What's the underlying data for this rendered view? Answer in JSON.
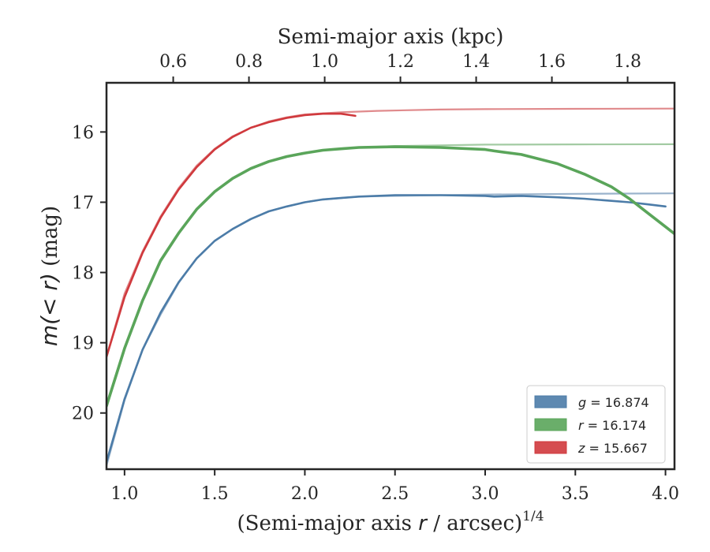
{
  "chart_data": {
    "type": "line",
    "xlabel": "(Semi-major axis r / arcsec)",
    "xlabel_prefix": "(Semi-major axis ",
    "xlabel_var": "r",
    "xlabel_suffix": " / arcsec)",
    "xlabel_exponent": "1/4",
    "ylabel": "m(< r) (mag)",
    "ylabel_math": "m(< r)",
    "ylabel_unit": " (mag)",
    "top_xlabel": "Semi-major axis (kpc)",
    "xlim": [
      0.9,
      4.05
    ],
    "ylim": [
      20.8,
      15.3
    ],
    "y_inverted": true,
    "x_ticks": [
      "1.0",
      "1.5",
      "2.0",
      "2.5",
      "3.0",
      "3.5",
      "4.0"
    ],
    "x_tick_values": [
      1.0,
      1.5,
      2.0,
      2.5,
      3.0,
      3.5,
      4.0
    ],
    "y_ticks": [
      "16",
      "17",
      "18",
      "19",
      "20"
    ],
    "y_tick_values": [
      16,
      17,
      18,
      19,
      20
    ],
    "top_x_ticks": [
      "0.6",
      "0.8",
      "1.0",
      "1.2",
      "1.4",
      "1.6",
      "1.8"
    ],
    "top_x_tick_positions": [
      1.27,
      1.69,
      2.11,
      2.53,
      2.95,
      3.37,
      3.79
    ],
    "legend": {
      "location": "lower right",
      "entries": [
        {
          "band": "g",
          "text": " = 16.874",
          "color": "#4c7ca8"
        },
        {
          "band": "r",
          "text": " = 16.174",
          "color": "#5aa55a"
        },
        {
          "band": "z",
          "text": " = 15.667",
          "color": "#d0393d"
        }
      ]
    },
    "series": [
      {
        "name": "g model",
        "color": "#9ab3cc",
        "x": [
          0.9,
          1.0,
          1.1,
          1.2,
          1.3,
          1.4,
          1.5,
          1.6,
          1.7,
          1.8,
          1.9,
          2.0,
          2.1,
          2.2,
          2.3,
          2.5,
          2.75,
          3.0,
          3.5,
          4.05
        ],
        "y": [
          20.75,
          19.82,
          19.1,
          18.6,
          18.15,
          17.8,
          17.55,
          17.38,
          17.24,
          17.13,
          17.06,
          17.0,
          16.96,
          16.94,
          16.92,
          16.91,
          16.9,
          16.89,
          16.88,
          16.874
        ]
      },
      {
        "name": "g data",
        "color": "#4c7ca8",
        "x": [
          0.9,
          1.0,
          1.1,
          1.2,
          1.3,
          1.4,
          1.5,
          1.6,
          1.7,
          1.8,
          1.9,
          2.0,
          2.1,
          2.2,
          2.3,
          2.5,
          2.75,
          3.0,
          3.05,
          3.2,
          3.4,
          3.55,
          3.7,
          3.8,
          3.9,
          4.0
        ],
        "y": [
          20.7,
          19.8,
          19.1,
          18.57,
          18.14,
          17.8,
          17.55,
          17.38,
          17.24,
          17.13,
          17.06,
          17.0,
          16.96,
          16.94,
          16.92,
          16.9,
          16.9,
          16.91,
          16.92,
          16.91,
          16.93,
          16.95,
          16.98,
          17.0,
          17.03,
          17.06
        ]
      },
      {
        "name": "r model",
        "color": "#a3cba3",
        "x": [
          0.9,
          1.0,
          1.1,
          1.2,
          1.3,
          1.4,
          1.5,
          1.6,
          1.7,
          1.8,
          1.9,
          2.0,
          2.1,
          2.2,
          2.3,
          2.5,
          2.75,
          3.0,
          3.5,
          4.05
        ],
        "y": [
          19.9,
          19.08,
          18.4,
          17.85,
          17.45,
          17.1,
          16.85,
          16.66,
          16.52,
          16.42,
          16.35,
          16.3,
          16.26,
          16.24,
          16.22,
          16.2,
          16.19,
          16.18,
          16.177,
          16.174
        ]
      },
      {
        "name": "r data",
        "color": "#5aa55a",
        "x": [
          0.9,
          1.0,
          1.1,
          1.2,
          1.3,
          1.4,
          1.5,
          1.6,
          1.7,
          1.8,
          1.9,
          2.0,
          2.1,
          2.2,
          2.3,
          2.5,
          2.75,
          3.0,
          3.05,
          3.2,
          3.4,
          3.55,
          3.7,
          3.8,
          3.9,
          4.0,
          4.05
        ],
        "y": [
          19.9,
          19.08,
          18.4,
          17.83,
          17.44,
          17.1,
          16.85,
          16.66,
          16.52,
          16.42,
          16.35,
          16.3,
          16.26,
          16.24,
          16.22,
          16.21,
          16.22,
          16.25,
          16.27,
          16.32,
          16.45,
          16.6,
          16.78,
          16.95,
          17.15,
          17.35,
          17.45
        ]
      },
      {
        "name": "z model",
        "color": "#e08a8c",
        "x": [
          0.9,
          1.0,
          1.1,
          1.2,
          1.3,
          1.4,
          1.5,
          1.6,
          1.7,
          1.8,
          1.9,
          2.0,
          2.2,
          2.4,
          2.75,
          3.0,
          3.5,
          4.05
        ],
        "y": [
          19.2,
          18.3,
          17.7,
          17.2,
          16.8,
          16.48,
          16.24,
          16.06,
          15.94,
          15.85,
          15.79,
          15.75,
          15.72,
          15.7,
          15.68,
          15.675,
          15.67,
          15.667
        ]
      },
      {
        "name": "z data",
        "color": "#d0393d",
        "x": [
          0.9,
          1.0,
          1.1,
          1.2,
          1.3,
          1.4,
          1.5,
          1.6,
          1.7,
          1.8,
          1.9,
          2.0,
          2.1,
          2.2,
          2.28
        ],
        "y": [
          19.2,
          18.35,
          17.72,
          17.22,
          16.82,
          16.5,
          16.25,
          16.07,
          15.94,
          15.86,
          15.8,
          15.76,
          15.74,
          15.74,
          15.77
        ]
      }
    ]
  }
}
